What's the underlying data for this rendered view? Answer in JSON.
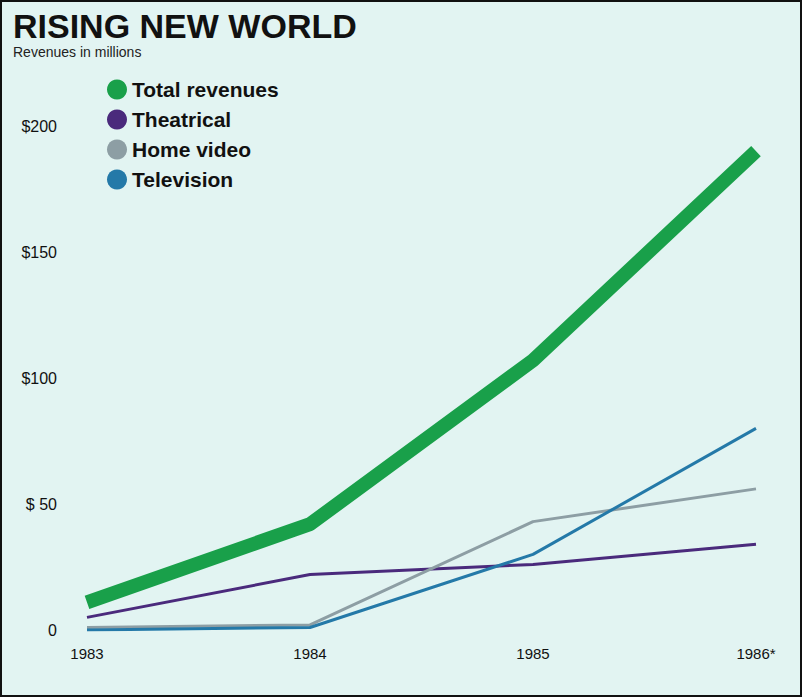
{
  "chart_data": {
    "type": "line",
    "title": "RISING NEW WORLD",
    "subtitle": "Revenues in millions",
    "categories": [
      "1983",
      "1984",
      "1985",
      "1986*"
    ],
    "series": [
      {
        "name": "Total revenues",
        "color": "#19a04a",
        "values": [
          11,
          42,
          107,
          190
        ]
      },
      {
        "name": "Theatrical",
        "color": "#4a2a7c",
        "values": [
          5,
          22,
          26,
          34
        ]
      },
      {
        "name": "Home video",
        "color": "#8d9ea4",
        "values": [
          1,
          2,
          43,
          56
        ]
      },
      {
        "name": "Television",
        "color": "#2479a8",
        "values": [
          0,
          1,
          30,
          80
        ]
      }
    ],
    "ylim": [
      0,
      200
    ],
    "yticks": [
      0,
      {
        "value": 50,
        "label": "$ 50"
      },
      {
        "value": 100,
        "label": "$100"
      },
      {
        "value": 150,
        "label": "$150"
      },
      {
        "value": 200,
        "label": "$200"
      }
    ],
    "grid": false,
    "legend": "upper left"
  }
}
